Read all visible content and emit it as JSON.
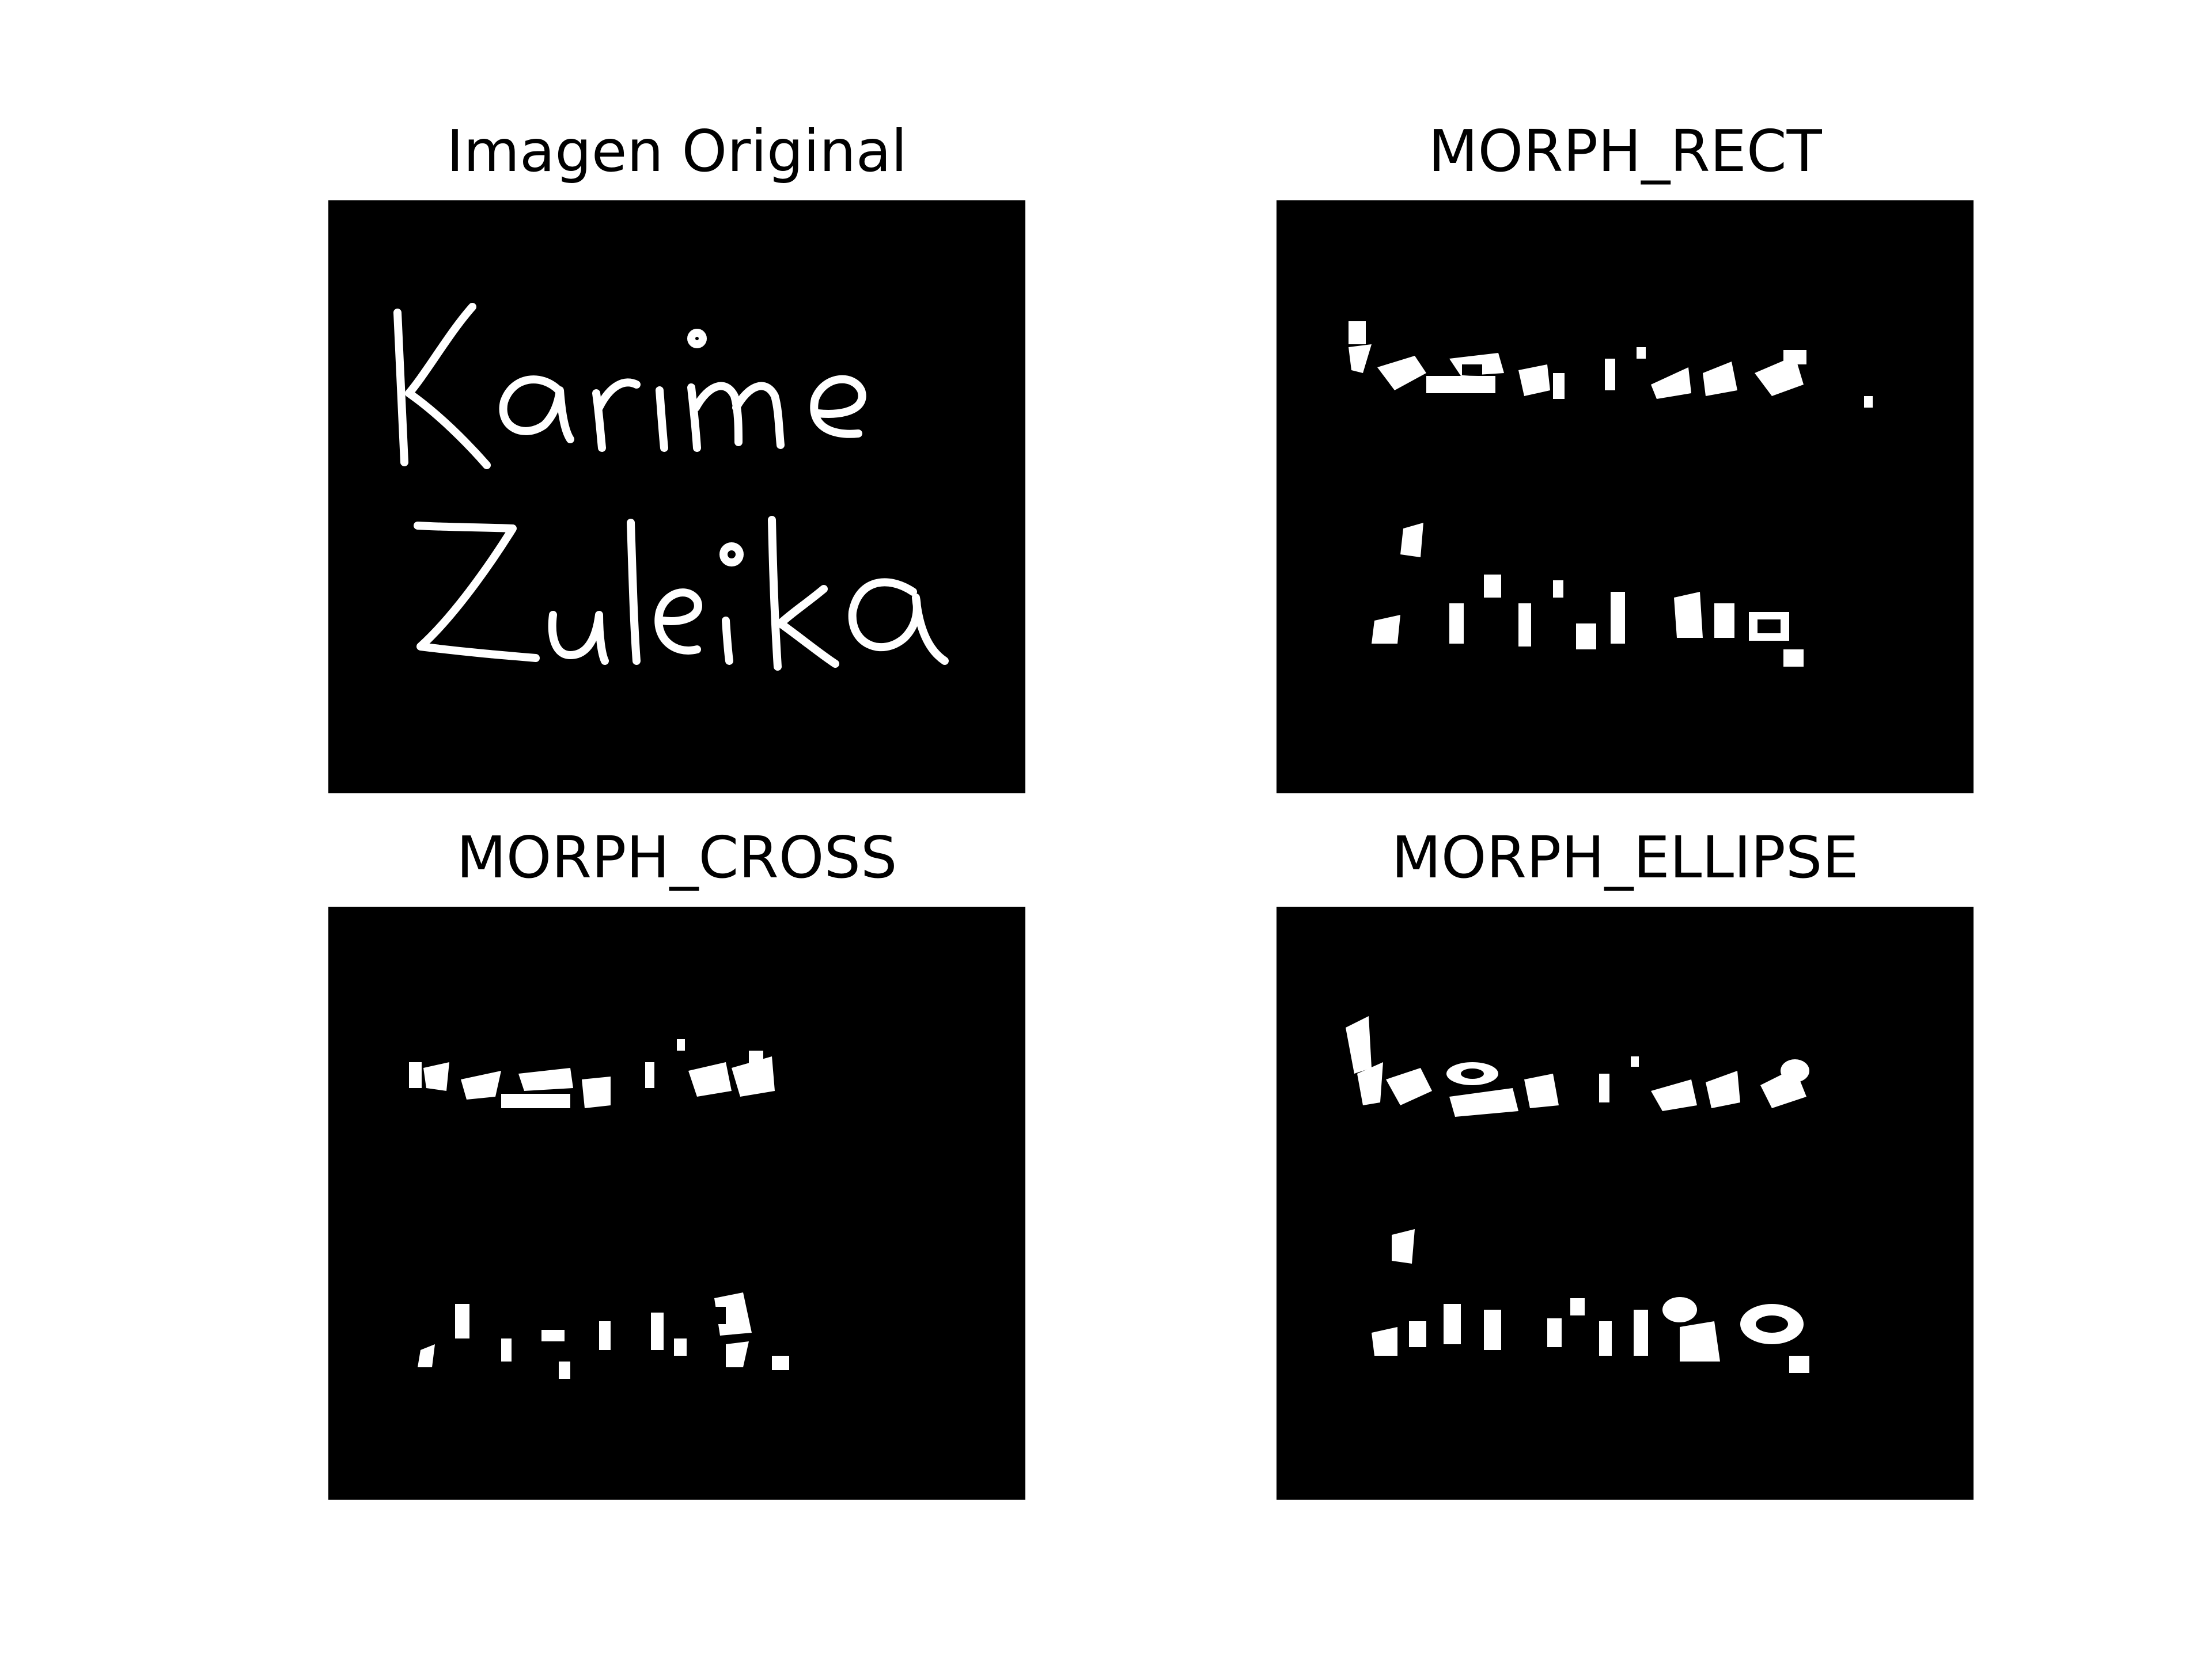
{
  "figure": {
    "panels": [
      {
        "title": "Imagen Original",
        "content": "Karime Zuleika",
        "rendering": "handwritten"
      },
      {
        "title": "MORPH_RECT",
        "rendering": "fragmented"
      },
      {
        "title": "MORPH_CROSS",
        "rendering": "fragmented"
      },
      {
        "title": "MORPH_ELLIPSE",
        "rendering": "fragmented"
      }
    ],
    "colors": {
      "background": "#ffffff",
      "image_background": "#000000",
      "foreground": "#ffffff",
      "title": "#000000"
    }
  }
}
